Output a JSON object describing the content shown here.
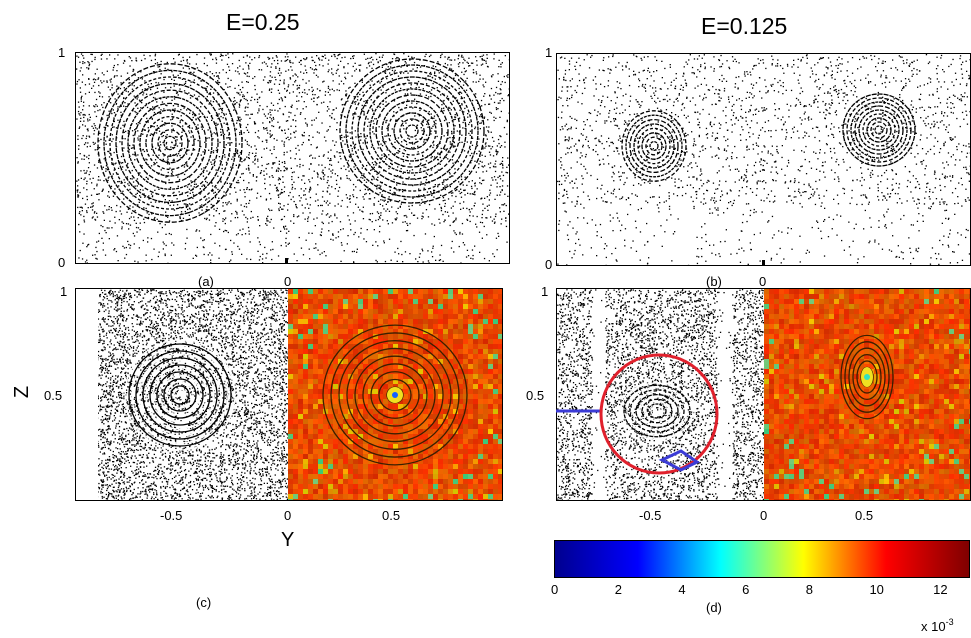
{
  "figure": {
    "headers": {
      "left": "E=0.25",
      "right": "E=0.125"
    },
    "panel_labels": {
      "a": "(a)",
      "b": "(b)",
      "c": "(c)",
      "d": "(d)"
    },
    "top_row": {
      "y_ticks": [
        "1",
        "0"
      ],
      "x_tick_center": "0"
    },
    "bottom_row": {
      "y_axis_label": "Z",
      "x_axis_label": "Y",
      "y_tick_top": "1",
      "y_tick_mid": "0.5",
      "x_ticks": [
        "-0.5",
        "0",
        "0.5"
      ]
    },
    "colorbar": {
      "ticks": [
        "0",
        "2",
        "4",
        "6",
        "8",
        "10",
        "12"
      ],
      "multiplier": "x 10",
      "exponent": "-3",
      "colormap": [
        "#00008f",
        "#0000ff",
        "#00ffff",
        "#ffff00",
        "#ff0000",
        "#800000"
      ]
    },
    "annotation_colors": {
      "circle": "#e0202c",
      "arrow": "#3b3bd6"
    }
  }
}
